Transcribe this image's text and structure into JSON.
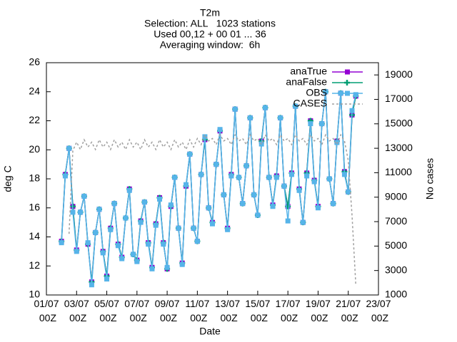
{
  "chart_data": {
    "type": "line",
    "title": [
      "T2m",
      "Selection: ALL   1023 stations",
      "Used 00,12 + 00 01 ... 36",
      "Averaging window:  6h"
    ],
    "xlabel": "Date",
    "ylabel": "deg C",
    "y2label": "No cases",
    "xlim": [
      "01/07 00Z",
      "23/07 00Z"
    ],
    "xticks": [
      "01/07 00Z",
      "03/07 00Z",
      "05/07 00Z",
      "07/07 00Z",
      "09/07 00Z",
      "11/07 00Z",
      "13/07 00Z",
      "15/07 00Z",
      "17/07 00Z",
      "19/07 00Z",
      "21/07 00Z",
      "23/07 00Z"
    ],
    "ylim": [
      10,
      26
    ],
    "yticks": [
      10,
      12,
      14,
      16,
      18,
      20,
      22,
      24,
      26
    ],
    "y2lim": [
      1000,
      20000
    ],
    "y2ticks": [
      1000,
      3000,
      5000,
      7000,
      9000,
      11000,
      13000,
      15000,
      17000,
      19000
    ],
    "legend": "top-right",
    "x": [
      "02/07 00Z",
      "02/07 06Z",
      "02/07 12Z",
      "02/07 18Z",
      "03/07 00Z",
      "03/07 06Z",
      "03/07 12Z",
      "03/07 18Z",
      "04/07 00Z",
      "04/07 06Z",
      "04/07 12Z",
      "04/07 18Z",
      "05/07 00Z",
      "05/07 06Z",
      "05/07 12Z",
      "05/07 18Z",
      "06/07 00Z",
      "06/07 06Z",
      "06/07 12Z",
      "06/07 18Z",
      "07/07 00Z",
      "07/07 06Z",
      "07/07 12Z",
      "07/07 18Z",
      "08/07 00Z",
      "08/07 06Z",
      "08/07 12Z",
      "08/07 18Z",
      "09/07 00Z",
      "09/07 06Z",
      "09/07 12Z",
      "09/07 18Z",
      "10/07 00Z",
      "10/07 06Z",
      "10/07 12Z",
      "10/07 18Z",
      "11/07 00Z",
      "11/07 06Z",
      "11/07 12Z",
      "11/07 18Z",
      "12/07 00Z",
      "12/07 06Z",
      "12/07 12Z",
      "12/07 18Z",
      "13/07 00Z",
      "13/07 06Z",
      "13/07 12Z",
      "13/07 18Z",
      "14/07 00Z",
      "14/07 06Z",
      "14/07 12Z",
      "14/07 18Z",
      "15/07 00Z",
      "15/07 06Z",
      "15/07 12Z",
      "15/07 18Z",
      "16/07 00Z",
      "16/07 06Z",
      "16/07 12Z",
      "16/07 18Z",
      "17/07 00Z",
      "17/07 06Z",
      "17/07 12Z",
      "17/07 18Z",
      "18/07 00Z",
      "18/07 06Z",
      "18/07 12Z",
      "18/07 18Z",
      "19/07 00Z",
      "19/07 06Z",
      "19/07 12Z",
      "19/07 18Z",
      "20/07 00Z",
      "20/07 06Z",
      "20/07 12Z",
      "20/07 18Z",
      "21/07 00Z",
      "21/07 06Z",
      "21/07 12Z"
    ],
    "series": [
      {
        "name": "anaTrue",
        "color": "#9400d3",
        "marker": "square",
        "values": [
          13.7,
          18.3,
          20.1,
          16.1,
          13.1,
          15.7,
          16.8,
          13.5,
          10.9,
          14.3,
          15.9,
          13.0,
          11.3,
          14.6,
          16.3,
          13.5,
          12.6,
          15.3,
          17.3,
          12.8,
          12.4,
          15.1,
          16.4,
          13.6,
          11.9,
          14.9,
          16.7,
          13.6,
          11.8,
          16.1,
          18.1,
          14.6,
          12.2,
          17.5,
          19.7,
          14.6,
          13.7,
          18.3,
          20.7,
          16.0,
          15.0,
          19.0,
          21.3,
          16.9,
          14.6,
          18.3,
          22.8,
          18.1,
          16.3,
          18.9,
          22.2,
          16.9,
          15.5,
          20.6,
          22.9,
          18.1,
          16.2,
          18.2,
          22.2,
          17.5,
          16.1,
          18.4,
          23.0,
          17.3,
          15.0,
          18.4,
          22.0,
          17.9,
          16.1,
          21.8,
          24.0,
          18.0,
          16.3,
          20.6,
          23.9,
          18.5,
          17.1,
          22.4,
          23.7
        ]
      },
      {
        "name": "anaFalse",
        "color": "#009e73",
        "marker": "plus",
        "values": [
          13.7,
          18.3,
          20.1,
          16.1,
          13.1,
          15.7,
          16.8,
          13.5,
          10.9,
          14.3,
          15.9,
          13.0,
          11.3,
          14.6,
          16.3,
          13.5,
          12.6,
          15.3,
          17.3,
          12.8,
          12.4,
          15.1,
          16.4,
          13.6,
          11.9,
          14.9,
          16.7,
          13.6,
          11.8,
          16.1,
          18.1,
          14.6,
          12.2,
          17.5,
          19.7,
          14.6,
          13.7,
          18.3,
          20.7,
          16.0,
          15.0,
          19.0,
          21.3,
          16.9,
          14.6,
          18.3,
          22.8,
          18.1,
          16.3,
          18.9,
          22.2,
          16.9,
          15.5,
          20.6,
          22.9,
          18.1,
          16.2,
          18.2,
          22.2,
          17.5,
          16.1,
          18.4,
          23.0,
          17.3,
          15.0,
          18.4,
          22.0,
          17.9,
          16.1,
          21.8,
          24.0,
          18.0,
          16.3,
          20.6,
          23.9,
          18.5,
          17.1,
          22.4,
          23.7
        ]
      },
      {
        "name": "OBS",
        "color": "#56b4e9",
        "marker": "square",
        "values": [
          13.6,
          18.2,
          20.1,
          15.7,
          13.0,
          15.7,
          16.8,
          13.6,
          10.7,
          14.3,
          15.9,
          12.9,
          11.1,
          14.5,
          16.3,
          13.4,
          12.5,
          15.3,
          17.2,
          12.8,
          12.3,
          15.0,
          16.4,
          13.5,
          11.8,
          14.8,
          16.6,
          13.5,
          11.9,
          16.2,
          18.1,
          14.6,
          12.1,
          17.6,
          19.7,
          14.6,
          13.7,
          18.3,
          20.9,
          16.0,
          14.9,
          19.0,
          21.4,
          16.9,
          14.5,
          18.2,
          22.8,
          18.1,
          16.3,
          18.9,
          22.2,
          16.9,
          15.5,
          20.4,
          22.9,
          18.1,
          16.1,
          18.1,
          22.2,
          17.5,
          15.1,
          18.3,
          23.0,
          17.2,
          15.0,
          18.2,
          21.8,
          17.8,
          16.0,
          21.8,
          24.0,
          18.0,
          16.3,
          20.5,
          23.9,
          18.3,
          17.1,
          22.7,
          23.8
        ]
      },
      {
        "name": "CASES",
        "color": "#a0a0a0",
        "marker": "none",
        "dash": "3,3",
        "axis": "y2",
        "values": [
          null,
          null,
          6000,
          12800,
          13500,
          12900,
          13700,
          13100,
          13500,
          12900,
          13700,
          13100,
          13500,
          12900,
          13700,
          13100,
          13500,
          12900,
          13700,
          13100,
          13500,
          12900,
          13700,
          13100,
          13500,
          12900,
          13700,
          13100,
          13500,
          12900,
          13700,
          13100,
          13500,
          12900,
          13700,
          13100,
          13800,
          13300,
          14100,
          13600,
          13800,
          13300,
          14100,
          13600,
          13800,
          13300,
          14100,
          13600,
          13800,
          13300,
          14100,
          13600,
          13800,
          13300,
          14100,
          13600,
          13800,
          13300,
          14100,
          13600,
          13800,
          13300,
          14100,
          13600,
          13800,
          13300,
          14100,
          13600,
          13800,
          13300,
          14100,
          13600,
          13800,
          13300,
          14100,
          13600,
          12000,
          7500,
          1800
        ]
      }
    ]
  }
}
